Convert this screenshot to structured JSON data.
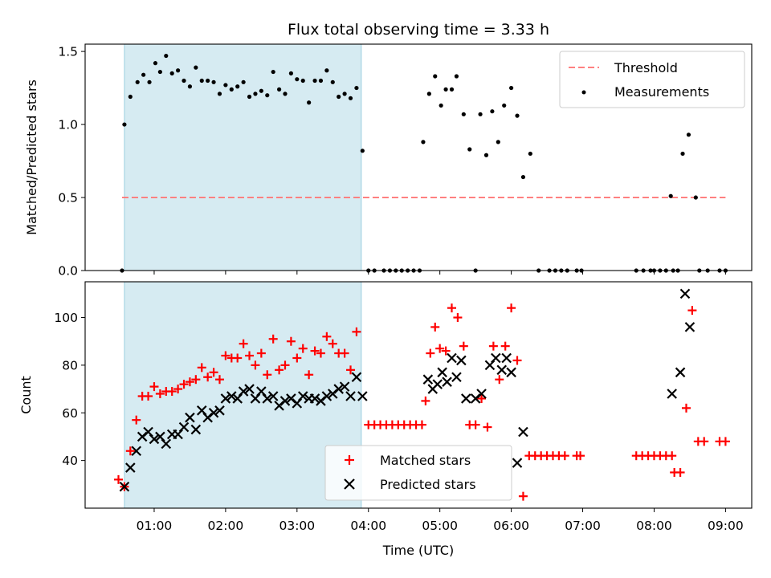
{
  "chart_data": [
    {
      "type": "scatter",
      "title": "Flux total observing time = 3.33 h",
      "ylabel": "Matched/Predicted stars",
      "ylim": [
        0,
        1.55
      ],
      "y_ticks": [
        {
          "value": 0.0,
          "label": "0.0"
        },
        {
          "value": 0.5,
          "label": "0.5"
        },
        {
          "value": 1.0,
          "label": "1.0"
        },
        {
          "value": 1.5,
          "label": "1.5"
        }
      ],
      "shaded_interval": [
        "00:35",
        "03:54"
      ],
      "threshold": {
        "name": "Threshold",
        "value": 0.5,
        "x_range": [
          "00:33",
          "09:00"
        ],
        "color": "#ff8080"
      },
      "series": [
        {
          "name": "Measurements",
          "color": "#000000",
          "marker": "dot",
          "points": [
            [
              "00:33",
              0.0
            ],
            [
              "00:35",
              1.0
            ],
            [
              "00:40",
              1.19
            ],
            [
              "00:46",
              1.29
            ],
            [
              "00:51",
              1.34
            ],
            [
              "00:56",
              1.29
            ],
            [
              "01:01",
              1.42
            ],
            [
              "01:05",
              1.36
            ],
            [
              "01:10",
              1.47
            ],
            [
              "01:15",
              1.35
            ],
            [
              "01:20",
              1.37
            ],
            [
              "01:25",
              1.3
            ],
            [
              "01:30",
              1.26
            ],
            [
              "01:35",
              1.39
            ],
            [
              "01:40",
              1.3
            ],
            [
              "01:45",
              1.3
            ],
            [
              "01:50",
              1.29
            ],
            [
              "01:55",
              1.21
            ],
            [
              "02:00",
              1.27
            ],
            [
              "02:05",
              1.24
            ],
            [
              "02:10",
              1.26
            ],
            [
              "02:15",
              1.29
            ],
            [
              "02:20",
              1.19
            ],
            [
              "02:25",
              1.21
            ],
            [
              "02:30",
              1.23
            ],
            [
              "02:35",
              1.2
            ],
            [
              "02:40",
              1.36
            ],
            [
              "02:45",
              1.24
            ],
            [
              "02:50",
              1.21
            ],
            [
              "02:55",
              1.35
            ],
            [
              "03:00",
              1.31
            ],
            [
              "03:05",
              1.3
            ],
            [
              "03:10",
              1.15
            ],
            [
              "03:15",
              1.3
            ],
            [
              "03:20",
              1.3
            ],
            [
              "03:25",
              1.37
            ],
            [
              "03:30",
              1.29
            ],
            [
              "03:35",
              1.19
            ],
            [
              "03:40",
              1.21
            ],
            [
              "03:45",
              1.18
            ],
            [
              "03:50",
              1.25
            ],
            [
              "03:55",
              0.82
            ],
            [
              "04:00",
              0.0
            ],
            [
              "04:05",
              0.0
            ],
            [
              "04:13",
              0.0
            ],
            [
              "04:18",
              0.0
            ],
            [
              "04:23",
              0.0
            ],
            [
              "04:28",
              0.0
            ],
            [
              "04:33",
              0.0
            ],
            [
              "04:38",
              0.0
            ],
            [
              "04:43",
              0.0
            ],
            [
              "04:46",
              0.88
            ],
            [
              "04:51",
              1.21
            ],
            [
              "04:56",
              1.33
            ],
            [
              "05:01",
              1.13
            ],
            [
              "05:05",
              1.24
            ],
            [
              "05:10",
              1.24
            ],
            [
              "05:14",
              1.33
            ],
            [
              "05:20",
              1.07
            ],
            [
              "05:25",
              0.83
            ],
            [
              "05:30",
              0.0
            ],
            [
              "05:34",
              1.07
            ],
            [
              "05:39",
              0.79
            ],
            [
              "05:44",
              1.09
            ],
            [
              "05:49",
              0.88
            ],
            [
              "05:54",
              1.13
            ],
            [
              "06:00",
              1.25
            ],
            [
              "06:05",
              1.06
            ],
            [
              "06:10",
              0.64
            ],
            [
              "06:16",
              0.8
            ],
            [
              "06:23",
              0.0
            ],
            [
              "06:32",
              0.0
            ],
            [
              "06:37",
              0.0
            ],
            [
              "06:42",
              0.0
            ],
            [
              "06:47",
              0.0
            ],
            [
              "06:55",
              0.0
            ],
            [
              "06:59",
              0.0
            ],
            [
              "07:45",
              0.0
            ],
            [
              "07:51",
              0.0
            ],
            [
              "07:57",
              0.0
            ],
            [
              "08:00",
              0.0
            ],
            [
              "08:05",
              0.0
            ],
            [
              "08:10",
              0.0
            ],
            [
              "08:16",
              0.0
            ],
            [
              "08:14",
              0.51
            ],
            [
              "08:20",
              0.0
            ],
            [
              "08:24",
              0.8
            ],
            [
              "08:29",
              0.93
            ],
            [
              "08:35",
              0.5
            ],
            [
              "08:38",
              0.0
            ],
            [
              "08:45",
              0.0
            ],
            [
              "08:55",
              0.0
            ],
            [
              "09:00",
              0.0
            ]
          ]
        }
      ],
      "legend": {
        "position": "upper right",
        "entries": [
          "Threshold",
          "Measurements"
        ]
      }
    },
    {
      "type": "scatter",
      "xlabel": "Time (UTC)",
      "ylabel": "Count",
      "xlim": [
        "00:02",
        "09:22"
      ],
      "ylim": [
        20,
        115
      ],
      "x_ticks": [
        "01:00",
        "02:00",
        "03:00",
        "04:00",
        "05:00",
        "06:00",
        "07:00",
        "08:00",
        "09:00"
      ],
      "y_ticks": [
        {
          "value": 40,
          "label": "40"
        },
        {
          "value": 60,
          "label": "60"
        },
        {
          "value": 80,
          "label": "80"
        },
        {
          "value": 100,
          "label": "100"
        }
      ],
      "shaded_interval": [
        "00:35",
        "03:54"
      ],
      "series": [
        {
          "name": "Matched stars",
          "color": "#ff0000",
          "marker": "plus",
          "points": [
            [
              "00:30",
              32
            ],
            [
              "00:35",
              29
            ],
            [
              "00:40",
              44
            ],
            [
              "00:45",
              57
            ],
            [
              "00:50",
              67
            ],
            [
              "00:55",
              67
            ],
            [
              "01:00",
              71
            ],
            [
              "01:05",
              68
            ],
            [
              "01:10",
              69
            ],
            [
              "01:15",
              69
            ],
            [
              "01:20",
              70
            ],
            [
              "01:25",
              72
            ],
            [
              "01:30",
              73
            ],
            [
              "01:35",
              74
            ],
            [
              "01:40",
              79
            ],
            [
              "01:45",
              75
            ],
            [
              "01:50",
              77
            ],
            [
              "01:55",
              74
            ],
            [
              "02:00",
              84
            ],
            [
              "02:05",
              83
            ],
            [
              "02:10",
              83
            ],
            [
              "02:15",
              89
            ],
            [
              "02:20",
              84
            ],
            [
              "02:25",
              80
            ],
            [
              "02:30",
              85
            ],
            [
              "02:35",
              76
            ],
            [
              "02:40",
              91
            ],
            [
              "02:45",
              78
            ],
            [
              "02:50",
              80
            ],
            [
              "02:55",
              90
            ],
            [
              "03:00",
              83
            ],
            [
              "03:05",
              87
            ],
            [
              "03:10",
              76
            ],
            [
              "03:15",
              86
            ],
            [
              "03:20",
              85
            ],
            [
              "03:25",
              92
            ],
            [
              "03:30",
              89
            ],
            [
              "03:35",
              85
            ],
            [
              "03:40",
              85
            ],
            [
              "03:45",
              78
            ],
            [
              "03:50",
              94
            ],
            [
              "04:00",
              55
            ],
            [
              "04:05",
              55
            ],
            [
              "04:10",
              55
            ],
            [
              "04:15",
              55
            ],
            [
              "04:20",
              55
            ],
            [
              "04:25",
              55
            ],
            [
              "04:30",
              55
            ],
            [
              "04:35",
              55
            ],
            [
              "04:40",
              55
            ],
            [
              "04:45",
              55
            ],
            [
              "04:48",
              65
            ],
            [
              "04:52",
              85
            ],
            [
              "04:56",
              96
            ],
            [
              "05:00",
              87
            ],
            [
              "05:05",
              86
            ],
            [
              "05:10",
              104
            ],
            [
              "05:15",
              100
            ],
            [
              "05:20",
              88
            ],
            [
              "05:25",
              55
            ],
            [
              "05:30",
              55
            ],
            [
              "05:35",
              66
            ],
            [
              "05:40",
              54
            ],
            [
              "05:45",
              88
            ],
            [
              "05:50",
              74
            ],
            [
              "05:55",
              88
            ],
            [
              "06:00",
              104
            ],
            [
              "06:05",
              82
            ],
            [
              "06:10",
              25
            ],
            [
              "06:15",
              42
            ],
            [
              "06:20",
              42
            ],
            [
              "06:25",
              42
            ],
            [
              "06:30",
              42
            ],
            [
              "06:35",
              42
            ],
            [
              "06:40",
              42
            ],
            [
              "06:45",
              42
            ],
            [
              "06:55",
              42
            ],
            [
              "06:58",
              42
            ],
            [
              "07:45",
              42
            ],
            [
              "07:50",
              42
            ],
            [
              "07:55",
              42
            ],
            [
              "08:00",
              42
            ],
            [
              "08:05",
              42
            ],
            [
              "08:10",
              42
            ],
            [
              "08:15",
              42
            ],
            [
              "08:17",
              35
            ],
            [
              "08:22",
              35
            ],
            [
              "08:27",
              62
            ],
            [
              "08:32",
              103
            ],
            [
              "08:37",
              48
            ],
            [
              "08:42",
              48
            ],
            [
              "08:55",
              48
            ],
            [
              "09:00",
              48
            ]
          ]
        },
        {
          "name": "Predicted stars",
          "color": "#000000",
          "marker": "x",
          "points": [
            [
              "00:35",
              29
            ],
            [
              "00:40",
              37
            ],
            [
              "00:45",
              44
            ],
            [
              "00:50",
              50
            ],
            [
              "00:55",
              52
            ],
            [
              "01:00",
              49
            ],
            [
              "01:05",
              50
            ],
            [
              "01:10",
              47
            ],
            [
              "01:15",
              51
            ],
            [
              "01:20",
              51
            ],
            [
              "01:25",
              54
            ],
            [
              "01:30",
              58
            ],
            [
              "01:35",
              53
            ],
            [
              "01:40",
              61
            ],
            [
              "01:45",
              58
            ],
            [
              "01:50",
              60
            ],
            [
              "01:55",
              61
            ],
            [
              "02:00",
              66
            ],
            [
              "02:05",
              67
            ],
            [
              "02:10",
              66
            ],
            [
              "02:15",
              69
            ],
            [
              "02:20",
              70
            ],
            [
              "02:25",
              66
            ],
            [
              "02:30",
              69
            ],
            [
              "02:35",
              66
            ],
            [
              "02:40",
              67
            ],
            [
              "02:45",
              63
            ],
            [
              "02:50",
              65
            ],
            [
              "02:55",
              66
            ],
            [
              "03:00",
              64
            ],
            [
              "03:05",
              67
            ],
            [
              "03:10",
              66
            ],
            [
              "03:15",
              66
            ],
            [
              "03:20",
              65
            ],
            [
              "03:25",
              67
            ],
            [
              "03:30",
              68
            ],
            [
              "03:35",
              70
            ],
            [
              "03:40",
              71
            ],
            [
              "03:45",
              67
            ],
            [
              "03:50",
              75
            ],
            [
              "03:55",
              67
            ],
            [
              "04:50",
              74
            ],
            [
              "04:54",
              70
            ],
            [
              "04:58",
              72
            ],
            [
              "05:02",
              77
            ],
            [
              "05:06",
              73
            ],
            [
              "05:10",
              83
            ],
            [
              "05:14",
              75
            ],
            [
              "05:18",
              82
            ],
            [
              "05:22",
              66
            ],
            [
              "05:30",
              66
            ],
            [
              "05:35",
              68
            ],
            [
              "05:42",
              80
            ],
            [
              "05:47",
              83
            ],
            [
              "05:52",
              78
            ],
            [
              "05:56",
              83
            ],
            [
              "06:00",
              77
            ],
            [
              "06:05",
              39
            ],
            [
              "06:10",
              52
            ],
            [
              "08:15",
              68
            ],
            [
              "08:22",
              77
            ],
            [
              "08:26",
              110
            ],
            [
              "08:30",
              96
            ]
          ]
        }
      ],
      "legend": {
        "position": "lower center",
        "entries": [
          "Matched stars",
          "Predicted stars"
        ]
      }
    }
  ]
}
